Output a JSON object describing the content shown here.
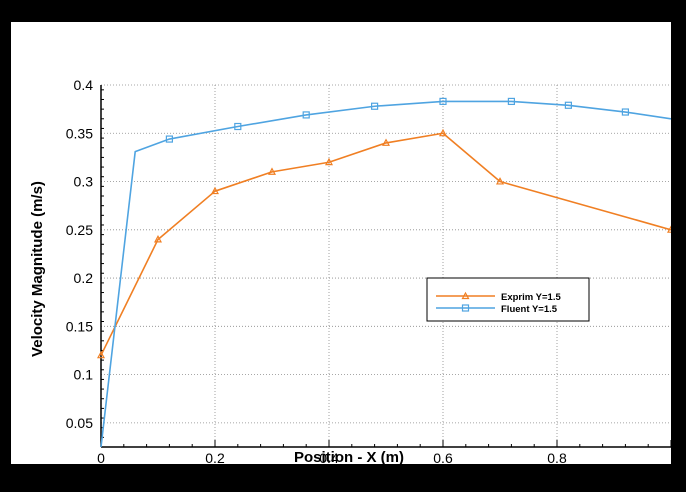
{
  "chart_data": {
    "type": "line",
    "title": "",
    "xlabel": "Position - X (m)",
    "ylabel": "Velocity Magnitude (m/s)",
    "xlim": [
      0,
      1.0
    ],
    "ylim": [
      0.025,
      0.4
    ],
    "x_ticks": [
      0,
      0.2,
      0.4,
      0.6,
      0.8
    ],
    "x_tick_labels": [
      "0",
      "0.2",
      "0.4",
      "0.6",
      "0.8"
    ],
    "y_ticks": [
      0.05,
      0.1,
      0.15,
      0.2,
      0.25,
      0.3,
      0.35,
      0.4
    ],
    "y_tick_labels": [
      "0.05",
      "0.1",
      "0.15",
      "0.2",
      "0.25",
      "0.3",
      "0.35",
      "0.4"
    ],
    "grid": true,
    "legend_position": "center-right",
    "series": [
      {
        "name": "Exprim Y=1.5",
        "color": "#f07f23",
        "marker": "triangle",
        "x": [
          0,
          0.1,
          0.2,
          0.3,
          0.4,
          0.5,
          0.6,
          0.7,
          1.0
        ],
        "y": [
          0.12,
          0.24,
          0.29,
          0.31,
          0.32,
          0.34,
          0.35,
          0.3,
          0.25
        ]
      },
      {
        "name": "Fluent Y=1.5",
        "color": "#4fa4e1",
        "marker": "square",
        "x": [
          0,
          0.06,
          0.12,
          0.24,
          0.36,
          0.48,
          0.6,
          0.72,
          0.82,
          0.92,
          1.0
        ],
        "y": [
          0.025,
          0.331,
          0.344,
          0.357,
          0.369,
          0.378,
          0.383,
          0.383,
          0.379,
          0.372,
          0.365
        ],
        "marker_x": [
          0.12,
          0.24,
          0.36,
          0.48,
          0.6,
          0.72,
          0.82,
          0.92
        ]
      }
    ]
  }
}
